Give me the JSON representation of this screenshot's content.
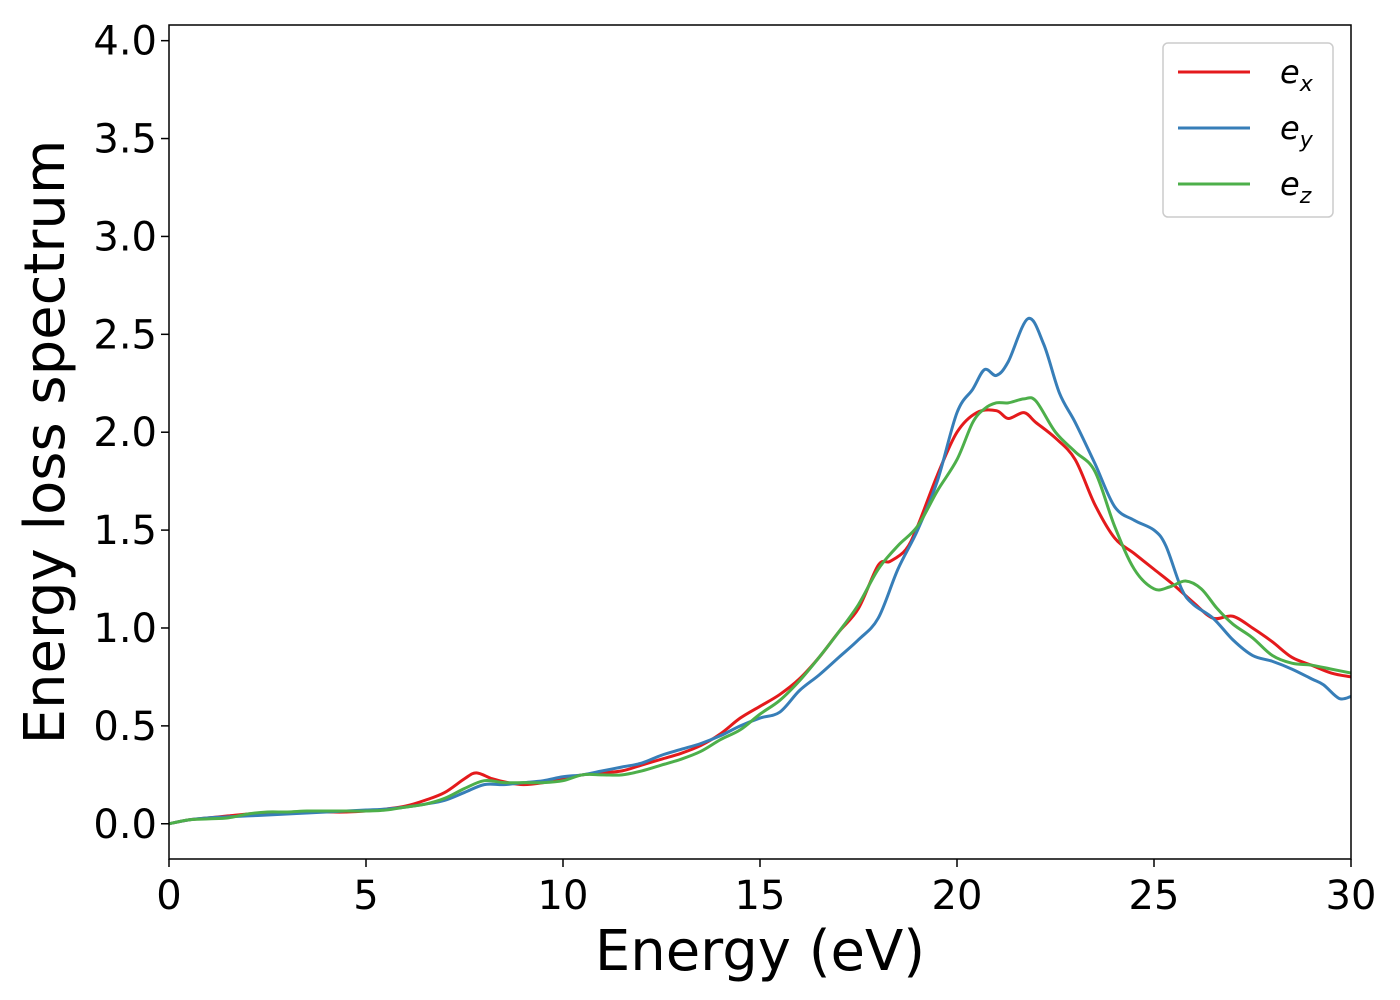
{
  "chart_data": {
    "type": "line",
    "xlabel": "Energy (eV)",
    "ylabel": "Energy loss spectrum",
    "xlim": [
      0,
      30
    ],
    "ylim": [
      -0.18,
      4.08
    ],
    "xticks": [
      "0",
      "5",
      "10",
      "15",
      "20",
      "25",
      "30"
    ],
    "yticks": [
      "0.0",
      "0.5",
      "1.0",
      "1.5",
      "2.0",
      "2.5",
      "3.0",
      "3.5",
      "4.0"
    ],
    "grid": false,
    "legend_position": "top-right",
    "series": [
      {
        "name": "e",
        "subscript": "x",
        "color": "#e41a1c",
        "x": [
          0,
          0.5,
          1,
          1.5,
          2,
          2.5,
          3,
          3.5,
          4,
          4.5,
          5,
          5.5,
          6,
          6.5,
          7,
          7.5,
          7.8,
          8.2,
          8.6,
          9,
          9.5,
          10,
          10.5,
          11,
          11.5,
          12,
          12.5,
          13,
          13.5,
          14,
          14.5,
          15,
          15.5,
          16,
          16.5,
          17,
          17.5,
          18,
          18.3,
          18.7,
          19,
          19.5,
          20,
          20.5,
          21,
          21.3,
          21.7,
          22,
          22.5,
          23,
          23.5,
          24,
          24.5,
          25,
          25.5,
          26,
          26.5,
          27,
          27.5,
          28,
          28.5,
          29,
          29.5,
          30
        ],
        "y": [
          0,
          0.02,
          0.03,
          0.04,
          0.05,
          0.055,
          0.06,
          0.06,
          0.06,
          0.06,
          0.065,
          0.075,
          0.09,
          0.12,
          0.16,
          0.23,
          0.26,
          0.23,
          0.21,
          0.2,
          0.21,
          0.23,
          0.25,
          0.26,
          0.27,
          0.3,
          0.33,
          0.36,
          0.4,
          0.46,
          0.54,
          0.6,
          0.66,
          0.74,
          0.85,
          0.98,
          1.1,
          1.32,
          1.34,
          1.4,
          1.52,
          1.78,
          2.0,
          2.1,
          2.11,
          2.07,
          2.1,
          2.05,
          1.97,
          1.86,
          1.63,
          1.46,
          1.38,
          1.3,
          1.22,
          1.13,
          1.05,
          1.06,
          1.0,
          0.93,
          0.85,
          0.81,
          0.77,
          0.75
        ]
      },
      {
        "name": "e",
        "subscript": "y",
        "color": "#377eb8",
        "x": [
          0,
          0.5,
          1,
          1.5,
          2,
          2.5,
          3,
          3.5,
          4,
          4.5,
          5,
          5.5,
          6,
          6.5,
          7,
          7.5,
          8,
          8.5,
          9,
          9.5,
          10,
          10.5,
          11,
          11.5,
          12,
          12.5,
          13,
          13.5,
          14,
          14.5,
          15,
          15.5,
          16,
          16.5,
          17,
          17.5,
          18,
          18.5,
          19,
          19.5,
          20,
          20.4,
          20.7,
          21,
          21.3,
          21.8,
          22.2,
          22.6,
          23,
          23.5,
          24,
          24.5,
          25,
          25.3,
          25.7,
          26,
          26.5,
          27,
          27.5,
          28,
          28.5,
          29,
          29.3,
          29.7,
          30
        ],
        "y": [
          0,
          0.02,
          0.03,
          0.035,
          0.04,
          0.045,
          0.05,
          0.055,
          0.06,
          0.065,
          0.07,
          0.075,
          0.085,
          0.1,
          0.12,
          0.16,
          0.2,
          0.2,
          0.21,
          0.22,
          0.24,
          0.25,
          0.27,
          0.29,
          0.31,
          0.35,
          0.38,
          0.41,
          0.45,
          0.5,
          0.54,
          0.57,
          0.68,
          0.76,
          0.85,
          0.94,
          1.05,
          1.3,
          1.5,
          1.75,
          2.1,
          2.22,
          2.32,
          2.29,
          2.36,
          2.58,
          2.45,
          2.2,
          2.05,
          1.84,
          1.62,
          1.55,
          1.5,
          1.42,
          1.2,
          1.12,
          1.05,
          0.94,
          0.86,
          0.83,
          0.79,
          0.74,
          0.71,
          0.64,
          0.65
        ]
      },
      {
        "name": "e",
        "subscript": "z",
        "color": "#4daf4a",
        "x": [
          0,
          0.5,
          1,
          1.5,
          2,
          2.5,
          3,
          3.5,
          4,
          4.5,
          5,
          5.5,
          6,
          6.5,
          7,
          7.5,
          8,
          8.5,
          9,
          9.5,
          10,
          10.5,
          11,
          11.5,
          12,
          12.5,
          13,
          13.5,
          14,
          14.5,
          15,
          15.5,
          16,
          16.5,
          17,
          17.5,
          18,
          18.5,
          19,
          19.5,
          20,
          20.4,
          20.7,
          21,
          21.3,
          21.7,
          22,
          22.5,
          23,
          23.5,
          24,
          24.5,
          25,
          25.4,
          25.8,
          26.2,
          26.6,
          27,
          27.5,
          28,
          28.5,
          29,
          29.5,
          30
        ],
        "y": [
          0,
          0.02,
          0.025,
          0.03,
          0.05,
          0.06,
          0.06,
          0.065,
          0.065,
          0.065,
          0.065,
          0.07,
          0.085,
          0.1,
          0.13,
          0.18,
          0.22,
          0.21,
          0.21,
          0.21,
          0.22,
          0.25,
          0.25,
          0.25,
          0.27,
          0.3,
          0.33,
          0.37,
          0.43,
          0.48,
          0.56,
          0.63,
          0.73,
          0.85,
          0.98,
          1.12,
          1.3,
          1.42,
          1.52,
          1.7,
          1.86,
          2.05,
          2.12,
          2.15,
          2.15,
          2.17,
          2.16,
          2.0,
          1.9,
          1.8,
          1.52,
          1.3,
          1.2,
          1.21,
          1.24,
          1.2,
          1.1,
          1.02,
          0.95,
          0.86,
          0.82,
          0.81,
          0.79,
          0.77
        ]
      }
    ]
  }
}
